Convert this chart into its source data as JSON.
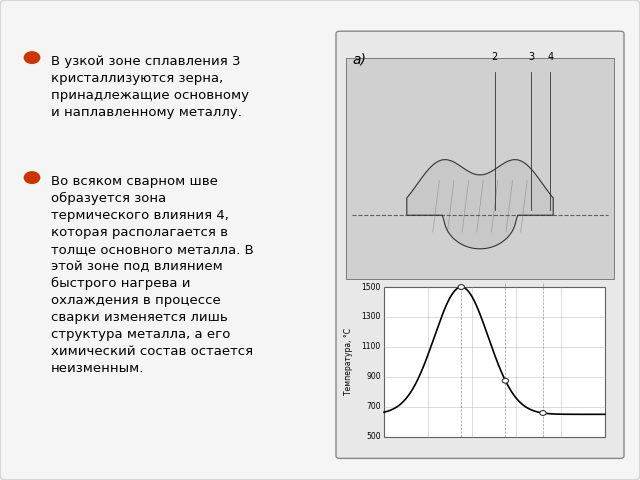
{
  "background_color": "#ffffff",
  "slide_bg": "#f0f0f0",
  "bullet_color": "#cc3300",
  "text_color": "#000000",
  "title_fontsize": 13,
  "body_fontsize": 11,
  "bullet1": "В узкой зоне сплавления 3\nкристаллизуются зерна,\nпринадлежащие основному\nи наплавленному металлу.",
  "bullet2": "Во всяком сварном шве\nобразуется зона\nтермического влияния 4,\nкоторая располагается в\nтолще основного металла. В\nэтой зоне под влиянием\nбыстрого нагрева и\nохлаждения в процессе\nсварки изменяется лишь\nструктура металла, а его\nхимический состав остается\nнеизменным.",
  "diagram_label": "а)",
  "y_labels": [
    "500",
    "700",
    "900",
    "1100",
    "1300",
    "1500"
  ],
  "y_values": [
    500,
    700,
    900,
    1100,
    1300,
    1500
  ],
  "zone_labels": [
    "2",
    "3",
    "4"
  ],
  "graph_color": "#000000",
  "grid_color": "#aaaaaa"
}
